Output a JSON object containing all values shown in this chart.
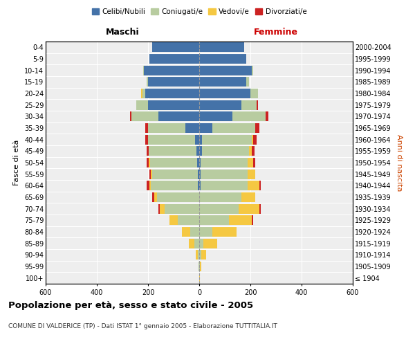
{
  "age_groups": [
    "100+",
    "95-99",
    "90-94",
    "85-89",
    "80-84",
    "75-79",
    "70-74",
    "65-69",
    "60-64",
    "55-59",
    "50-54",
    "45-49",
    "40-44",
    "35-39",
    "30-34",
    "25-29",
    "20-24",
    "15-19",
    "10-14",
    "5-9",
    "0-4"
  ],
  "birth_years": [
    "≤ 1904",
    "1905-1909",
    "1910-1914",
    "1915-1919",
    "1920-1924",
    "1925-1929",
    "1930-1934",
    "1935-1939",
    "1940-1944",
    "1945-1949",
    "1950-1954",
    "1955-1959",
    "1960-1964",
    "1965-1969",
    "1970-1974",
    "1975-1979",
    "1980-1984",
    "1985-1989",
    "1990-1994",
    "1995-1999",
    "2000-2004"
  ],
  "male_celibi": [
    0,
    0,
    0,
    0,
    0,
    0,
    0,
    0,
    5,
    5,
    8,
    12,
    15,
    55,
    160,
    200,
    210,
    200,
    215,
    195,
    185
  ],
  "male_coniugati": [
    0,
    2,
    6,
    18,
    35,
    85,
    135,
    165,
    185,
    180,
    185,
    185,
    185,
    145,
    105,
    45,
    12,
    5,
    5,
    0,
    0
  ],
  "male_vedovi": [
    0,
    2,
    8,
    22,
    32,
    32,
    20,
    10,
    5,
    5,
    5,
    0,
    0,
    0,
    0,
    0,
    5,
    0,
    0,
    0,
    0
  ],
  "male_divorziati": [
    0,
    0,
    0,
    0,
    0,
    0,
    5,
    10,
    10,
    5,
    8,
    8,
    10,
    10,
    5,
    0,
    0,
    0,
    0,
    0,
    0
  ],
  "female_celibi": [
    0,
    0,
    0,
    0,
    0,
    0,
    0,
    0,
    5,
    5,
    5,
    10,
    10,
    50,
    130,
    165,
    200,
    185,
    205,
    185,
    175
  ],
  "female_coniugati": [
    0,
    2,
    8,
    15,
    50,
    115,
    155,
    165,
    185,
    185,
    185,
    185,
    195,
    170,
    130,
    60,
    30,
    10,
    5,
    0,
    0
  ],
  "female_vedovi": [
    2,
    5,
    20,
    55,
    95,
    90,
    80,
    55,
    45,
    30,
    20,
    10,
    5,
    0,
    0,
    0,
    0,
    0,
    0,
    0,
    0
  ],
  "female_divorziati": [
    0,
    0,
    0,
    0,
    0,
    5,
    5,
    0,
    5,
    0,
    10,
    10,
    15,
    15,
    10,
    5,
    0,
    0,
    0,
    0,
    0
  ],
  "color_celibi": "#4472a8",
  "color_coniugati": "#b8cca0",
  "color_vedovi": "#f5c842",
  "color_divorziati": "#cc2222",
  "title": "Popolazione per età, sesso e stato civile - 2005",
  "subtitle": "COMUNE DI VALDERICE (TP) - Dati ISTAT 1° gennaio 2005 - Elaborazione TUTTITALIA.IT",
  "xlabel_left": "Maschi",
  "xlabel_right": "Femmine",
  "ylabel_left": "Fasce di età",
  "ylabel_right": "Anni di nascita",
  "xlim": 600,
  "bg_color": "#ffffff",
  "plot_bg": "#eeeeee",
  "grid_color": "#ffffff"
}
